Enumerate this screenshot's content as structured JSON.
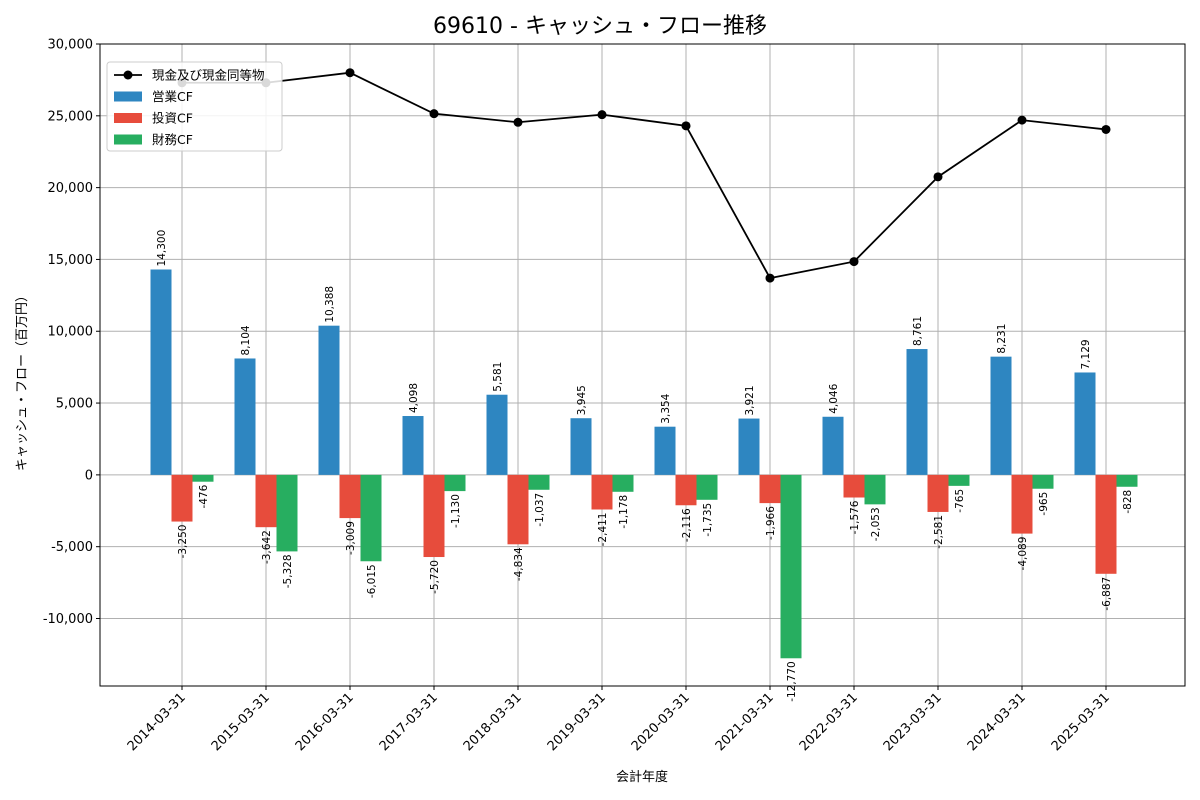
{
  "chart_data": {
    "type": "bar",
    "title": "69610 - キャッシュ・フロー推移",
    "xlabel": "会計年度",
    "ylabel": "キャッシュ・フロー（百万円）",
    "ylim": [
      -14700,
      30000
    ],
    "yticks": [
      -10000,
      -5000,
      0,
      5000,
      10000,
      15000,
      20000,
      25000,
      30000
    ],
    "ytick_labels": [
      "-10,000",
      "-5,000",
      "0",
      "5,000",
      "10,000",
      "15,000",
      "20,000",
      "25,000",
      "30,000"
    ],
    "grid": true,
    "legend_position": "top-left",
    "categories": [
      "2014-03-31",
      "2015-03-31",
      "2016-03-31",
      "2017-03-31",
      "2018-03-31",
      "2019-03-31",
      "2020-03-31",
      "2021-03-31",
      "2022-03-31",
      "2023-03-31",
      "2024-03-31",
      "2025-03-31"
    ],
    "series": [
      {
        "name": "営業CF",
        "kind": "bar",
        "color": "#2e86c1",
        "values": [
          14300,
          8104,
          10388,
          4098,
          5581,
          3945,
          3354,
          3921,
          4046,
          8761,
          8231,
          7129
        ],
        "labels": [
          "14,300",
          "8,104",
          "10,388",
          "4,098",
          "5,581",
          "3,945",
          "3,354",
          "3,921",
          "4,046",
          "8,761",
          "8,231",
          "7,129"
        ]
      },
      {
        "name": "投資CF",
        "kind": "bar",
        "color": "#e74c3c",
        "values": [
          -3250,
          -3642,
          -3009,
          -5720,
          -4834,
          -2411,
          -2116,
          -1966,
          -1576,
          -2581,
          -4089,
          -6887
        ],
        "labels": [
          "-3,250",
          "-3,642",
          "-3,009",
          "-5,720",
          "-4,834",
          "-2,411",
          "-2,116",
          "-1,966",
          "-1,576",
          "-2,581",
          "-4,089",
          "-6,887"
        ]
      },
      {
        "name": "財務CF",
        "kind": "bar",
        "color": "#27ae60",
        "values": [
          -476,
          -5328,
          -6015,
          -1130,
          -1037,
          -1178,
          -1735,
          -12770,
          -2053,
          -765,
          -965,
          -828
        ],
        "labels": [
          "-476",
          "-5,328",
          "-6,015",
          "-1,130",
          "-1,037",
          "-1,178",
          "-1,735",
          "-12,770",
          "-2,053",
          "-765",
          "-965",
          "-828"
        ]
      },
      {
        "name": "現金及び現金同等物",
        "kind": "line",
        "color": "#000000",
        "values": [
          27300,
          27300,
          28000,
          25150,
          24550,
          25080,
          24300,
          13700,
          14850,
          20750,
          24700,
          24050
        ]
      }
    ]
  }
}
